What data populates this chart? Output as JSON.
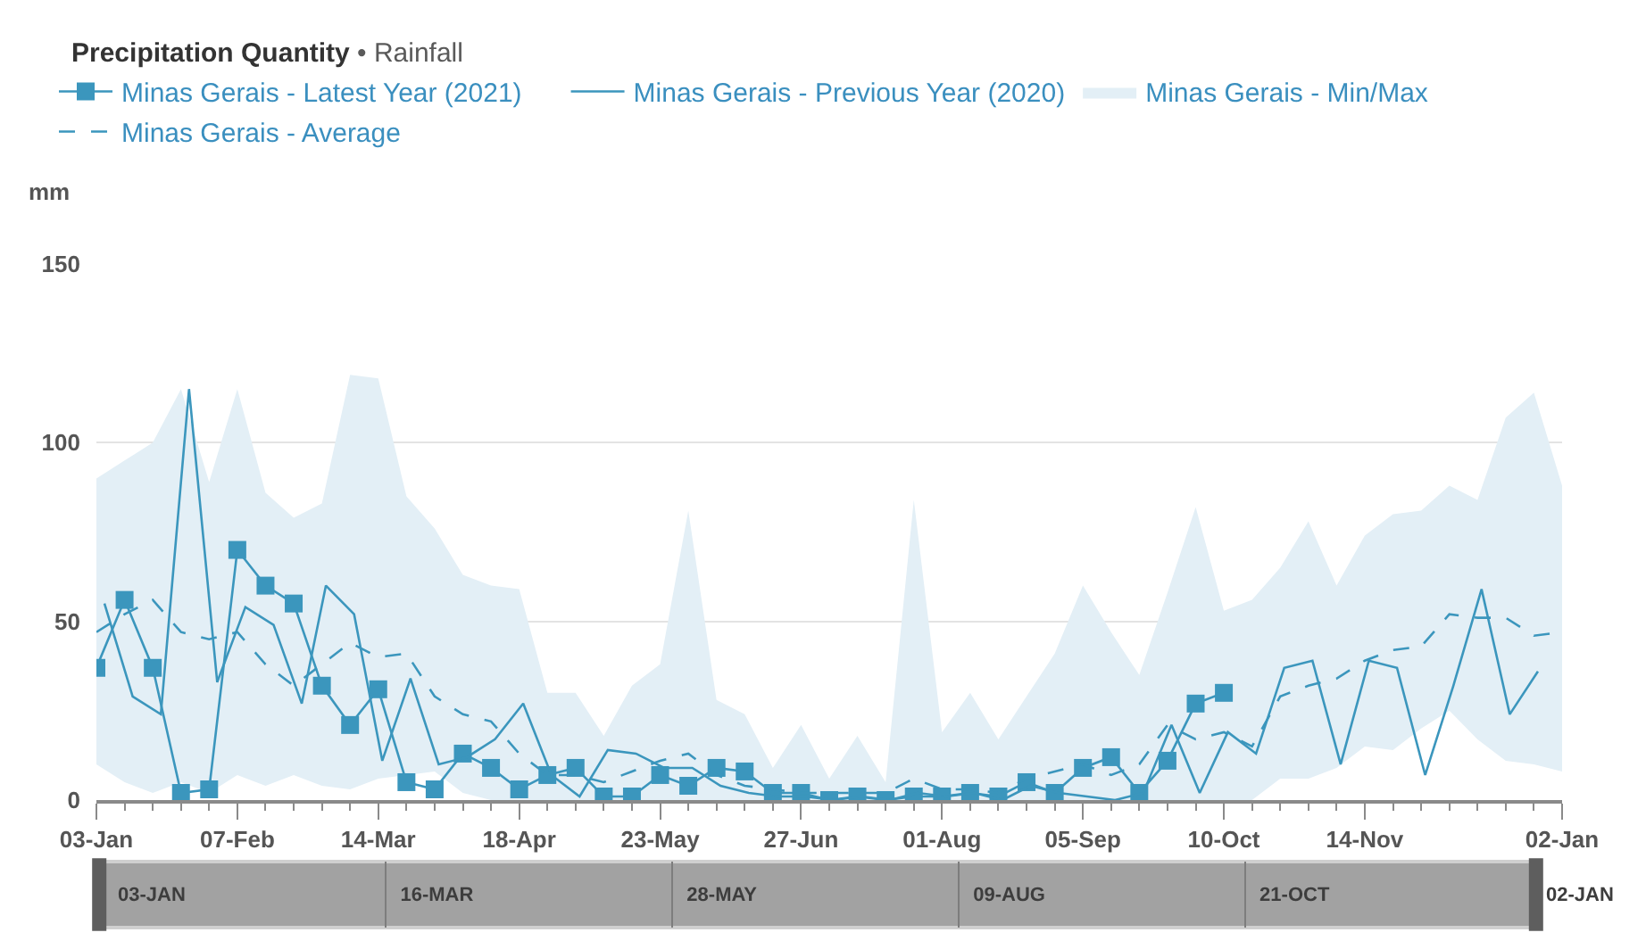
{
  "chart_data": {
    "type": "line",
    "title": "Precipitation Quantity",
    "subtitle": "• Rainfall",
    "ylabel": "mm",
    "x": [
      "2021-01-03",
      "2021-01-10",
      "2021-01-17",
      "2021-01-24",
      "2021-01-31",
      "2021-02-07",
      "2021-02-14",
      "2021-02-21",
      "2021-02-28",
      "2021-03-07",
      "2021-03-14",
      "2021-03-21",
      "2021-03-28",
      "2021-04-04",
      "2021-04-11",
      "2021-04-18",
      "2021-04-25",
      "2021-05-02",
      "2021-05-09",
      "2021-05-16",
      "2021-05-23",
      "2021-05-30",
      "2021-06-06",
      "2021-06-13",
      "2021-06-20",
      "2021-06-27",
      "2021-07-04",
      "2021-07-11",
      "2021-07-18",
      "2021-07-25",
      "2021-08-01",
      "2021-08-08",
      "2021-08-15",
      "2021-08-22",
      "2021-08-29",
      "2021-09-05",
      "2021-09-12",
      "2021-09-19",
      "2021-09-26",
      "2021-10-03",
      "2021-10-10",
      "2021-10-17",
      "2021-10-24",
      "2021-10-31",
      "2021-11-07",
      "2021-11-14",
      "2021-11-21",
      "2021-11-28",
      "2021-12-05",
      "2021-12-12",
      "2021-12-19",
      "2021-12-26",
      "2022-01-02"
    ],
    "series": [
      {
        "name": "Minas Gerais - Latest Year (2021)",
        "color": "#3b96bd",
        "marker": "square",
        "values": [
          37,
          56,
          37,
          2,
          3,
          70,
          60,
          55,
          32,
          21,
          31,
          5,
          3,
          13,
          9,
          3,
          7,
          9,
          1,
          1,
          7,
          4,
          9,
          8,
          2,
          2,
          0,
          1,
          0,
          1,
          1,
          2,
          1,
          5,
          2,
          9,
          12,
          2,
          11,
          27,
          30,
          null,
          null,
          null,
          null,
          null,
          null,
          null,
          null,
          null,
          null,
          null,
          null
        ]
      },
      {
        "name": "Minas Gerais - Previous Year (2020)",
        "color": "#3b96bd",
        "x": [
          "2021-01-05",
          "2021-01-12",
          "2021-01-19",
          "2021-01-26",
          "2021-02-02",
          "2021-02-09",
          "2021-02-16",
          "2021-02-23",
          "2021-03-01",
          "2021-03-08",
          "2021-03-15",
          "2021-03-22",
          "2021-03-29",
          "2021-04-05",
          "2021-04-12",
          "2021-04-19",
          "2021-04-26",
          "2021-05-03",
          "2021-05-10",
          "2021-05-17",
          "2021-05-24",
          "2021-05-31",
          "2021-06-07",
          "2021-06-14",
          "2021-06-21",
          "2021-06-28",
          "2021-07-05",
          "2021-07-12",
          "2021-07-19",
          "2021-07-26",
          "2021-08-02",
          "2021-08-09",
          "2021-08-16",
          "2021-08-23",
          "2021-08-30",
          "2021-09-06",
          "2021-09-13",
          "2021-09-20",
          "2021-09-27",
          "2021-10-04",
          "2021-10-11",
          "2021-10-18",
          "2021-10-25",
          "2021-11-01",
          "2021-11-08",
          "2021-11-15",
          "2021-11-22",
          "2021-11-29",
          "2021-12-06",
          "2021-12-13",
          "2021-12-20",
          "2021-12-27"
        ],
        "values": [
          55,
          29,
          24,
          115,
          33,
          54,
          49,
          27,
          60,
          52,
          11,
          34,
          10,
          12,
          17,
          27,
          7,
          1,
          14,
          13,
          9,
          9,
          4,
          2,
          1,
          1,
          0,
          1,
          0,
          2,
          1,
          2,
          0,
          4,
          2,
          1,
          0,
          2,
          21,
          2,
          19,
          13,
          37,
          39,
          10,
          39,
          37,
          7,
          32,
          59,
          24,
          36
        ]
      },
      {
        "name": "Minas Gerais - Min/Max",
        "type": "area",
        "color": "#e3eff6",
        "values": [
          null,
          null,
          null,
          null,
          null,
          null,
          null,
          null,
          null,
          null,
          null,
          null,
          null,
          null,
          null,
          null,
          null,
          null,
          null,
          null,
          null,
          null,
          null,
          null,
          null,
          null,
          null,
          null,
          null,
          null,
          null,
          null,
          null,
          null,
          null,
          null,
          null,
          null,
          null,
          null,
          null,
          null,
          null,
          null,
          null,
          null,
          null,
          null,
          null,
          null,
          null,
          null,
          null
        ],
        "lower": [
          10,
          5,
          2,
          5,
          2,
          7,
          4,
          7,
          4,
          3,
          6,
          7,
          8,
          2,
          0,
          0,
          0,
          0,
          0,
          0,
          0,
          0,
          0,
          0,
          0,
          0,
          0,
          0,
          0,
          0,
          0,
          0,
          0,
          0,
          0,
          0,
          0,
          0,
          0,
          0,
          0,
          0,
          6,
          6,
          9,
          15,
          14,
          20,
          25,
          17,
          11,
          10,
          8
        ],
        "upper": [
          90,
          95,
          100,
          115,
          89,
          115,
          86,
          79,
          83,
          119,
          118,
          85,
          76,
          63,
          60,
          59,
          30,
          30,
          18,
          32,
          38,
          81,
          28,
          24,
          9,
          21,
          6,
          18,
          5,
          84,
          19,
          30,
          17,
          29,
          41,
          60,
          47,
          35,
          58,
          82,
          53,
          56,
          65,
          78,
          60,
          74,
          80,
          81,
          88,
          84,
          107,
          114,
          88
        ]
      },
      {
        "name": "Minas Gerais - Average",
        "color": "#3b96bd",
        "line_style": "dashed",
        "values": [
          47,
          52,
          56,
          47,
          45,
          47,
          38,
          32,
          38,
          44,
          40,
          41,
          29,
          24,
          22,
          13,
          7,
          7,
          5,
          8,
          11,
          13,
          7,
          4,
          3,
          2,
          2,
          2,
          2,
          6,
          3,
          3,
          2,
          6,
          8,
          10,
          7,
          10,
          21,
          17,
          19,
          15,
          29,
          32,
          34,
          39,
          42,
          43,
          52,
          51,
          51,
          46,
          47
        ]
      }
    ],
    "xlim": [
      "2021-01-03",
      "2022-01-02"
    ],
    "xticks": [
      {
        "value": "2021-01-03",
        "label": "03-Jan"
      },
      {
        "value": "2021-01-10",
        "label": null
      },
      {
        "value": "2021-01-17",
        "label": null
      },
      {
        "value": "2021-01-24",
        "label": null
      },
      {
        "value": "2021-01-31",
        "label": null
      },
      {
        "value": "2021-02-07",
        "label": "07-Feb"
      },
      {
        "value": "2021-02-14",
        "label": null
      },
      {
        "value": "2021-02-21",
        "label": null
      },
      {
        "value": "2021-02-28",
        "label": null
      },
      {
        "value": "2021-03-07",
        "label": null
      },
      {
        "value": "2021-03-14",
        "label": "14-Mar"
      },
      {
        "value": "2021-03-21",
        "label": null
      },
      {
        "value": "2021-03-28",
        "label": null
      },
      {
        "value": "2021-04-04",
        "label": null
      },
      {
        "value": "2021-04-11",
        "label": null
      },
      {
        "value": "2021-04-18",
        "label": "18-Apr"
      },
      {
        "value": "2021-04-25",
        "label": null
      },
      {
        "value": "2021-05-02",
        "label": null
      },
      {
        "value": "2021-05-09",
        "label": null
      },
      {
        "value": "2021-05-16",
        "label": null
      },
      {
        "value": "2021-05-23",
        "label": "23-May"
      },
      {
        "value": "2021-05-30",
        "label": null
      },
      {
        "value": "2021-06-06",
        "label": null
      },
      {
        "value": "2021-06-13",
        "label": null
      },
      {
        "value": "2021-06-20",
        "label": null
      },
      {
        "value": "2021-06-27",
        "label": "27-Jun"
      },
      {
        "value": "2021-07-04",
        "label": null
      },
      {
        "value": "2021-07-11",
        "label": null
      },
      {
        "value": "2021-07-18",
        "label": null
      },
      {
        "value": "2021-07-25",
        "label": null
      },
      {
        "value": "2021-08-01",
        "label": "01-Aug"
      },
      {
        "value": "2021-08-08",
        "label": null
      },
      {
        "value": "2021-08-15",
        "label": null
      },
      {
        "value": "2021-08-22",
        "label": null
      },
      {
        "value": "2021-08-29",
        "label": null
      },
      {
        "value": "2021-09-05",
        "label": "05-Sep"
      },
      {
        "value": "2021-09-12",
        "label": null
      },
      {
        "value": "2021-09-19",
        "label": null
      },
      {
        "value": "2021-09-26",
        "label": null
      },
      {
        "value": "2021-10-03",
        "label": null
      },
      {
        "value": "2021-10-10",
        "label": "10-Oct"
      },
      {
        "value": "2021-10-17",
        "label": null
      },
      {
        "value": "2021-10-24",
        "label": null
      },
      {
        "value": "2021-10-31",
        "label": null
      },
      {
        "value": "2021-11-07",
        "label": null
      },
      {
        "value": "2021-11-14",
        "label": "14-Nov"
      },
      {
        "value": "2021-11-21",
        "label": null
      },
      {
        "value": "2021-11-28",
        "label": null
      },
      {
        "value": "2021-12-05",
        "label": null
      },
      {
        "value": "2021-12-12",
        "label": null
      },
      {
        "value": "2021-12-19",
        "label": null
      },
      {
        "value": "2021-12-26",
        "label": null
      },
      {
        "value": "2022-01-02",
        "label": "02-Jan"
      }
    ],
    "ylim": [
      0,
      150
    ],
    "yticks": [
      0,
      50,
      100,
      150
    ],
    "x2lim": [
      "2021-01-03",
      "2022-01-02"
    ],
    "x2ticks": [
      {
        "value": "2021-01-03",
        "label": "03-JAN"
      },
      {
        "value": "2021-03-16",
        "label": "16-MAR"
      },
      {
        "value": "2021-05-28",
        "label": "28-MAY"
      },
      {
        "value": "2021-08-09",
        "label": "09-AUG"
      },
      {
        "value": "2021-10-21",
        "label": "21-OCT"
      },
      {
        "value": "2022-01-02",
        "label": "02-JAN"
      }
    ],
    "grid": "y",
    "legend": "top left",
    "marker": "none",
    "line_style": "solid"
  }
}
